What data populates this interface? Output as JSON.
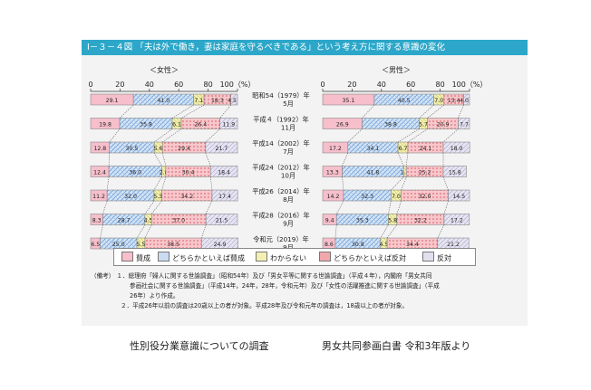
{
  "title": "Ⅰ－３－４図 「夫は外で働き，妻は家庭を守るべきである」という考え方に関する意識の変化",
  "colors": {
    "title_bg": "#2ca7c9",
    "agree": "#f6bfcb",
    "somewhat_agree": "#c9dcf2",
    "dont_know": "#f3f1b0",
    "somewhat_disagree": "#f1a8ad",
    "disagree": "#e2e0ef"
  },
  "legend": [
    "賛成",
    "どちらかといえば賛成",
    "わからない",
    "どちらかといえば反対",
    "反対"
  ],
  "notes": {
    "head": "（備考）",
    "lines": [
      "１．総理府「婦人に関する世論調査」（昭和54年）及び「男女平等に関する世論調査」（平成４年），内閣府「男女共同",
      "参画社会に関する世論調査」（平成14年，24年，28年，令和元年）及び「女性の活躍推進に関する世論調査」（平成",
      "26年）より作成。",
      "２．平成26年以前の調査は20歳以上の者が対象。平成28年及び令和元年の調査は，18歳以上の者が対象。"
    ]
  },
  "captions": {
    "left": "性別役分業意識についての調査",
    "right": "男女共同参画白書 令和3年版より"
  },
  "chart_data": [
    {
      "type": "bar",
      "stacked": true,
      "orientation": "horizontal",
      "title": "＜女性＞",
      "x_ticks": [
        "0",
        "20",
        "40",
        "60",
        "80",
        "100（%）"
      ],
      "xlim": [
        0,
        100
      ],
      "categories": [
        [
          "昭和54（1979）年",
          "5月"
        ],
        [
          "平成４（1992）年",
          "11月"
        ],
        [
          "平成14（2002）年",
          "7月"
        ],
        [
          "平成24（2012）年",
          "10月"
        ],
        [
          "平成26（2014）年",
          "8月"
        ],
        [
          "平成28（2016）年",
          "9月"
        ],
        [
          "令和元（2019）年",
          "9月"
        ]
      ],
      "series": [
        {
          "name": "賛成",
          "values": [
            29.1,
            19.8,
            12.8,
            12.4,
            11.2,
            8.3,
            6.5
          ]
        },
        {
          "name": "どちらかといえば賛成",
          "values": [
            41.0,
            35.8,
            30.5,
            36.0,
            32.0,
            28.7,
            25.0
          ]
        },
        {
          "name": "わからない",
          "values": [
            7.1,
            6.1,
            5.6,
            2.8,
            5.3,
            4.5,
            5.5
          ]
        },
        {
          "name": "どちらかといえば反対",
          "values": [
            18.3,
            26.4,
            29.4,
            30.4,
            34.2,
            37.0,
            38.5
          ]
        },
        {
          "name": "反対",
          "values": [
            4.5,
            11.9,
            21.7,
            18.4,
            17.4,
            21.5,
            24.9
          ]
        }
      ]
    },
    {
      "type": "bar",
      "stacked": true,
      "orientation": "horizontal",
      "title": "＜男性＞",
      "x_ticks": [
        "0",
        "20",
        "40",
        "60",
        "80",
        "100（%）"
      ],
      "xlim": [
        0,
        100
      ],
      "series": [
        {
          "name": "賛成",
          "values": [
            35.1,
            26.9,
            17.2,
            13.3,
            14.2,
            9.4,
            8.6
          ]
        },
        {
          "name": "どちらかといえば賛成",
          "values": [
            40.5,
            38.8,
            34.1,
            41.8,
            32.3,
            35.3,
            30.8
          ]
        },
        {
          "name": "わからない",
          "values": [
            7.0,
            5.7,
            6.7,
            1.8,
            7.0,
            5.8,
            4.5
          ]
        },
        {
          "name": "どちらかといえば反対",
          "values": [
            13.4,
            20.9,
            24.1,
            25.2,
            32.0,
            32.2,
            34.4
          ]
        },
        {
          "name": "反対",
          "values": [
            4.0,
            7.7,
            18.0,
            15.8,
            14.5,
            17.2,
            21.2
          ]
        }
      ]
    }
  ]
}
